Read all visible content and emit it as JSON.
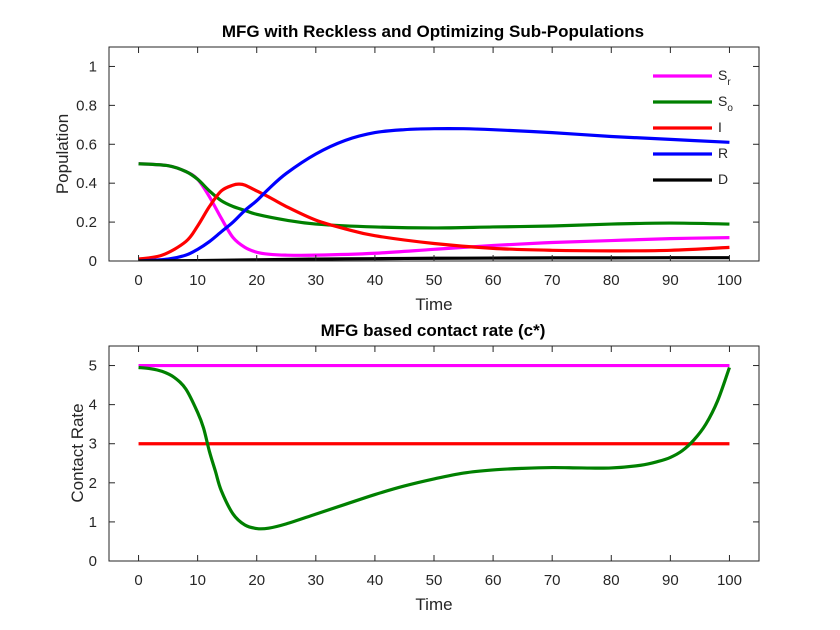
{
  "chart_data": [
    {
      "type": "line",
      "title": "MFG with Reckless and Optimizing Sub-Populations",
      "xlabel": "Time",
      "ylabel": "Population",
      "xlim": [
        -5,
        105
      ],
      "ylim": [
        0,
        1.1
      ],
      "xticks": [
        0,
        10,
        20,
        30,
        40,
        50,
        60,
        70,
        80,
        90,
        100
      ],
      "yticks": [
        0,
        0.2,
        0.4,
        0.6,
        0.8,
        1
      ],
      "xtick_labels": [
        "0",
        "10",
        "20",
        "30",
        "40",
        "50",
        "60",
        "70",
        "80",
        "90",
        "100"
      ],
      "ytick_labels": [
        "0",
        "0.2",
        "0.4",
        "0.6",
        "0.8",
        "1"
      ],
      "legend_position": "top-right",
      "series": [
        {
          "name": "S_r",
          "label_main": "S",
          "label_sub": "r",
          "color": "#ff00ff",
          "x": [
            0,
            5,
            8,
            10,
            12,
            14,
            16,
            18,
            20,
            22,
            25,
            30,
            40,
            50,
            60,
            70,
            80,
            90,
            100
          ],
          "y": [
            0.5,
            0.49,
            0.46,
            0.42,
            0.33,
            0.22,
            0.12,
            0.07,
            0.045,
            0.035,
            0.03,
            0.03,
            0.04,
            0.06,
            0.08,
            0.095,
            0.105,
            0.115,
            0.12
          ]
        },
        {
          "name": "S_o",
          "label_main": "S",
          "label_sub": "o",
          "color": "#008000",
          "x": [
            0,
            5,
            8,
            10,
            12,
            14,
            16,
            18,
            20,
            25,
            30,
            40,
            50,
            60,
            70,
            80,
            90,
            100
          ],
          "y": [
            0.5,
            0.49,
            0.46,
            0.42,
            0.36,
            0.31,
            0.28,
            0.26,
            0.24,
            0.21,
            0.19,
            0.175,
            0.17,
            0.175,
            0.18,
            0.19,
            0.195,
            0.19
          ]
        },
        {
          "name": "I",
          "label_main": "I",
          "label_sub": "",
          "color": "#ff0000",
          "x": [
            0,
            4,
            8,
            10,
            12,
            14,
            16,
            17,
            18,
            20,
            22,
            25,
            30,
            35,
            40,
            50,
            60,
            70,
            80,
            90,
            100
          ],
          "y": [
            0.01,
            0.03,
            0.1,
            0.18,
            0.28,
            0.36,
            0.39,
            0.395,
            0.39,
            0.36,
            0.33,
            0.28,
            0.21,
            0.165,
            0.13,
            0.09,
            0.065,
            0.055,
            0.052,
            0.055,
            0.07
          ]
        },
        {
          "name": "R",
          "label_main": "R",
          "label_sub": "",
          "color": "#0000ff",
          "x": [
            0,
            5,
            8,
            10,
            12,
            14,
            16,
            18,
            20,
            22,
            25,
            30,
            35,
            40,
            45,
            50,
            55,
            60,
            70,
            80,
            90,
            100
          ],
          "y": [
            0.0,
            0.01,
            0.03,
            0.06,
            0.1,
            0.15,
            0.2,
            0.26,
            0.31,
            0.37,
            0.45,
            0.55,
            0.62,
            0.66,
            0.675,
            0.68,
            0.68,
            0.675,
            0.66,
            0.64,
            0.625,
            0.61
          ]
        },
        {
          "name": "D",
          "label_main": "D",
          "label_sub": "",
          "color": "#000000",
          "x": [
            0,
            10,
            20,
            30,
            40,
            50,
            60,
            70,
            80,
            90,
            100
          ],
          "y": [
            0.0,
            0.002,
            0.006,
            0.01,
            0.012,
            0.014,
            0.015,
            0.016,
            0.016,
            0.017,
            0.017
          ]
        }
      ]
    },
    {
      "type": "line",
      "title": "MFG based contact rate (c*)",
      "xlabel": "Time",
      "ylabel": "Contact Rate",
      "xlim": [
        -5,
        105
      ],
      "ylim": [
        0,
        5.5
      ],
      "xticks": [
        0,
        10,
        20,
        30,
        40,
        50,
        60,
        70,
        80,
        90,
        100
      ],
      "yticks": [
        0,
        1,
        2,
        3,
        4,
        5
      ],
      "xtick_labels": [
        "0",
        "10",
        "20",
        "30",
        "40",
        "50",
        "60",
        "70",
        "80",
        "90",
        "100"
      ],
      "ytick_labels": [
        "0",
        "1",
        "2",
        "3",
        "4",
        "5"
      ],
      "series": [
        {
          "name": "S_r",
          "color": "#ff00ff",
          "x": [
            0,
            100
          ],
          "y": [
            5,
            5
          ]
        },
        {
          "name": "I",
          "color": "#ff0000",
          "x": [
            0,
            100
          ],
          "y": [
            3,
            3
          ]
        },
        {
          "name": "S_o",
          "color": "#008000",
          "x": [
            0,
            2,
            4,
            6,
            8,
            10,
            11,
            12,
            13,
            14,
            16,
            18,
            20,
            22,
            25,
            30,
            35,
            40,
            45,
            50,
            55,
            60,
            65,
            70,
            75,
            80,
            85,
            88,
            90,
            92,
            94,
            96,
            98,
            100
          ],
          "y": [
            4.95,
            4.92,
            4.85,
            4.7,
            4.4,
            3.8,
            3.4,
            2.8,
            2.3,
            1.8,
            1.2,
            0.92,
            0.83,
            0.84,
            0.95,
            1.2,
            1.45,
            1.7,
            1.92,
            2.1,
            2.25,
            2.33,
            2.37,
            2.39,
            2.38,
            2.38,
            2.45,
            2.55,
            2.65,
            2.82,
            3.1,
            3.5,
            4.1,
            4.95
          ]
        }
      ]
    }
  ]
}
